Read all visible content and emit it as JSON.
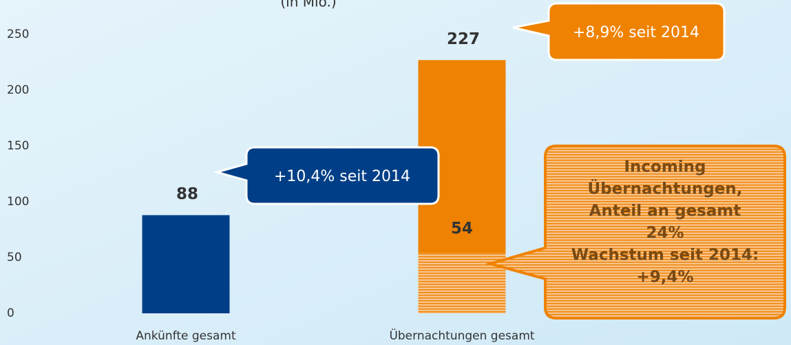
{
  "chart_data": {
    "type": "bar",
    "subtitle": "(in Mio.)",
    "categories": [
      "Ankünfte gesamt",
      "Übernachtungen gesamt"
    ],
    "values": [
      88,
      227
    ],
    "colors": [
      "#003f87",
      "#ef8200"
    ],
    "overlay_values": [
      null,
      54
    ],
    "ylim": [
      0,
      250
    ],
    "yticks": [
      0,
      50,
      100,
      150,
      200,
      250
    ],
    "annotations": [
      "+10,4% seit 2014",
      "+8,9% seit 2014"
    ],
    "callout_lines": [
      "Incoming",
      "Übernachtungen,",
      "Anteil an gesamt",
      "24%",
      "Wachstum seit 2014:",
      "+9,4%"
    ]
  }
}
